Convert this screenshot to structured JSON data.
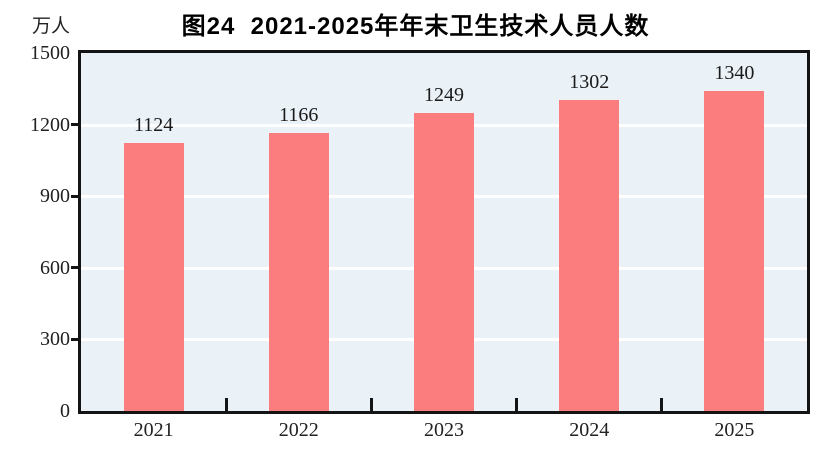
{
  "chart_data": {
    "type": "bar",
    "title": "图24  2021-2025年年末卫生技术人员人数",
    "ylabel": "万人",
    "xlabel": "",
    "categories": [
      "2021",
      "2022",
      "2023",
      "2024",
      "2025"
    ],
    "values": [
      1124,
      1166,
      1249,
      1302,
      1340
    ],
    "ylim": [
      0,
      1500
    ],
    "yticks": [
      0,
      300,
      600,
      900,
      1200,
      1500
    ],
    "grid": "horizontal",
    "legend_position": "none",
    "data_labels_shown": true,
    "colors": {
      "bar": "#FB7D7D",
      "plot_background": "#EAF2F7",
      "gridline": "#FFFFFF",
      "axis": "#141414",
      "label_text": "#1a1a1a",
      "title_text": "#000000"
    }
  }
}
